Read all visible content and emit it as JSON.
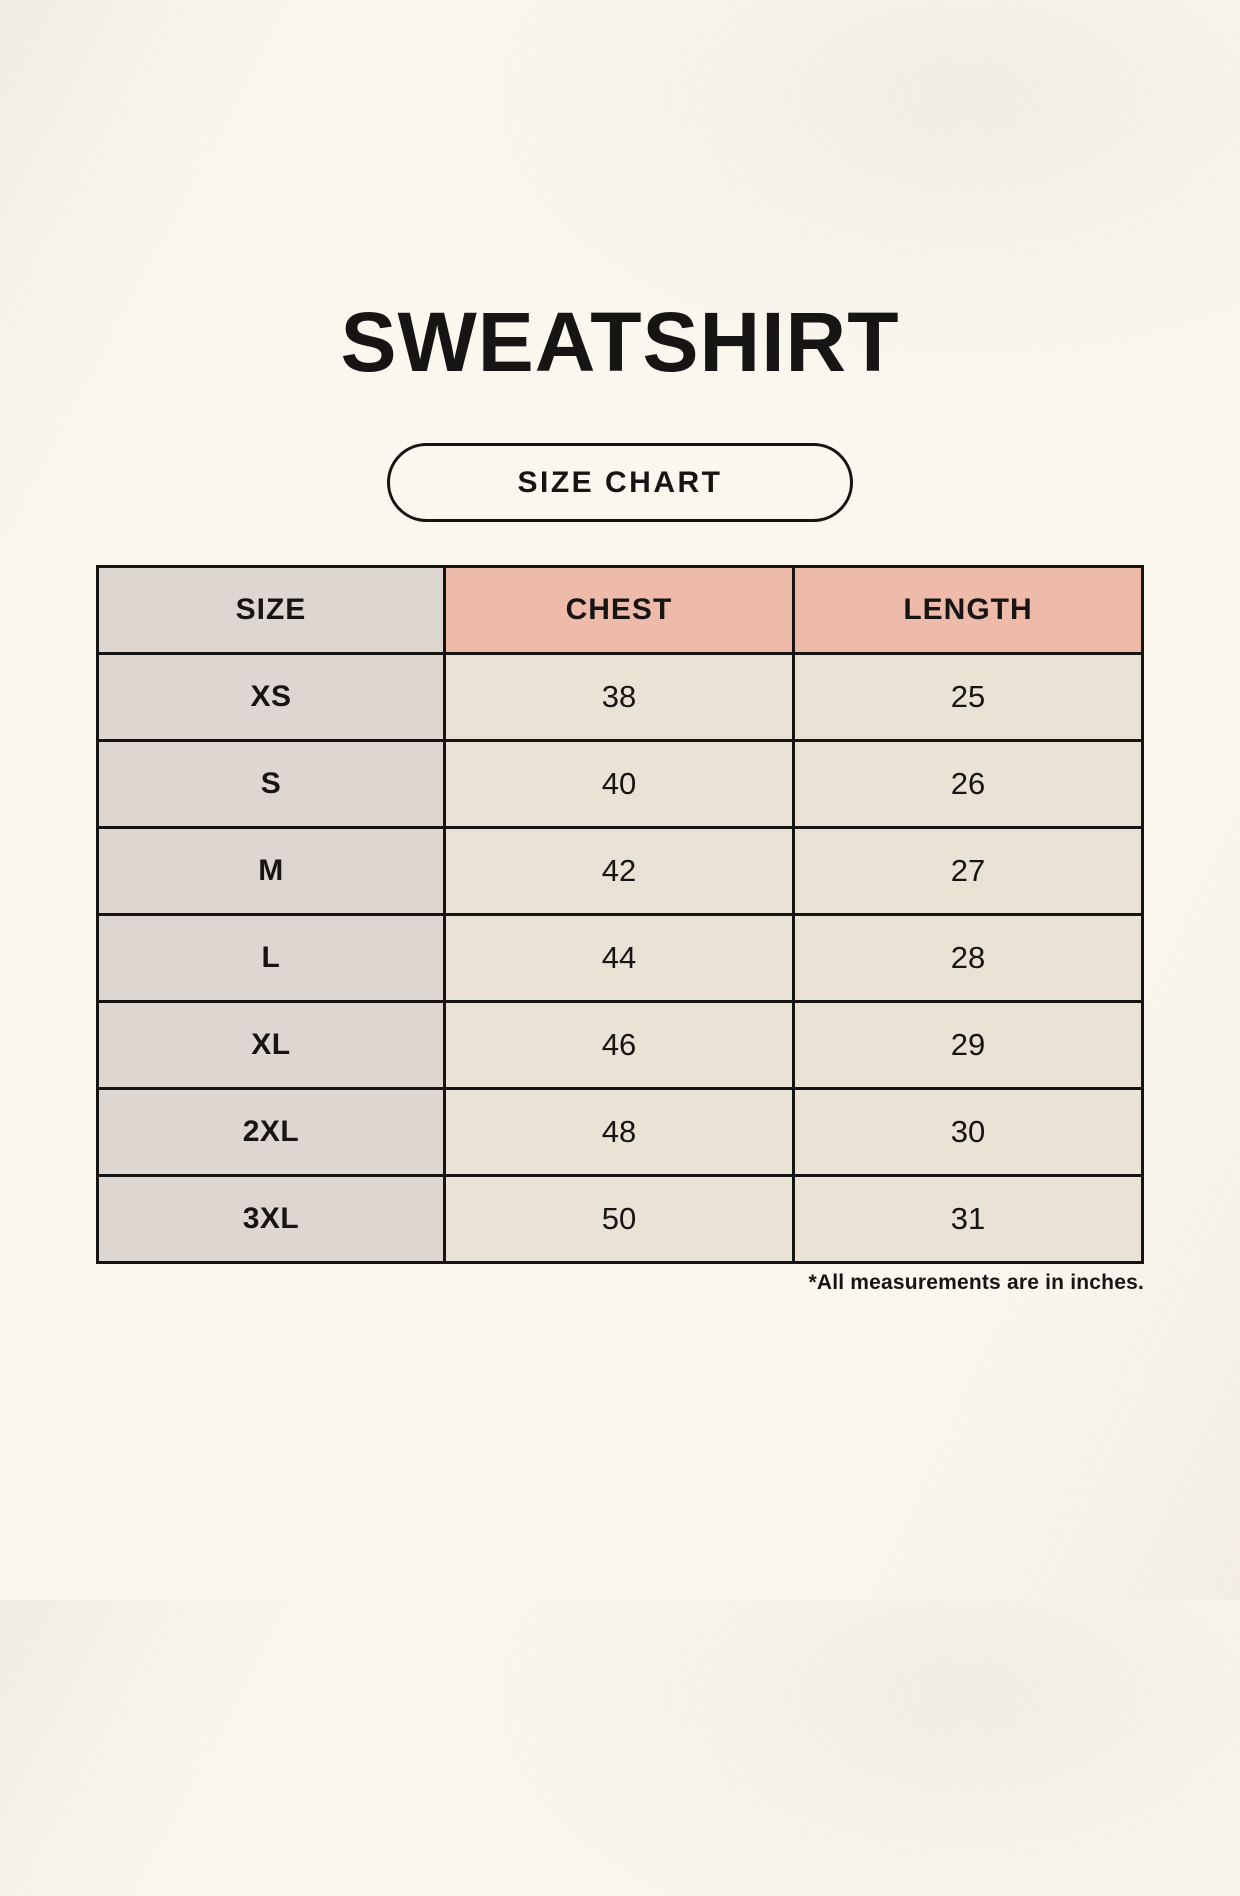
{
  "header": {
    "title": "SWEATSHIRT",
    "badge_label": "SIZE CHART"
  },
  "chart_data": {
    "type": "table",
    "title": "SWEATSHIRT",
    "columns": [
      "SIZE",
      "CHEST",
      "LENGTH"
    ],
    "rows": [
      [
        "XS",
        "38",
        "25"
      ],
      [
        "S",
        "40",
        "26"
      ],
      [
        "M",
        "42",
        "27"
      ],
      [
        "L",
        "44",
        "28"
      ],
      [
        "XL",
        "46",
        "29"
      ],
      [
        "2XL",
        "48",
        "30"
      ],
      [
        "3XL",
        "50",
        "31"
      ]
    ],
    "footnote": "*All measurements are in inches.",
    "units": "inches"
  },
  "colors": {
    "background": "#faf7ef",
    "table_border": "#171513",
    "text": "#171513",
    "size_column_bg": "#ded6d0",
    "measure_header_bg": "#eebbab",
    "value_cell_bg": "#e9e2d5"
  }
}
